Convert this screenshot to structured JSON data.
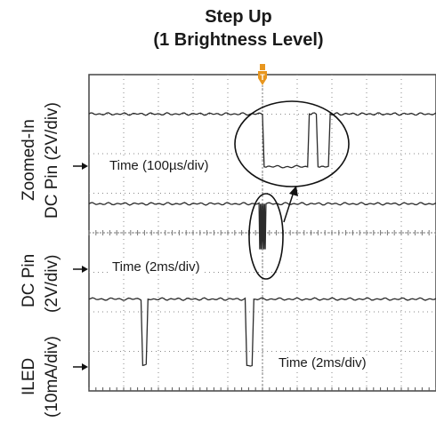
{
  "chart_data": {
    "type": "line",
    "title": "Step Up",
    "subtitle": "(1 Brightness Level)",
    "grid": true,
    "channels": [
      {
        "label_line1": "Zoomed-In",
        "label_line2": "DC Pin (2V/div)",
        "time_annotation": "Time (100µs/div)",
        "x": [
          0,
          5,
          5.05,
          6.3,
          6.35,
          6.55,
          6.6,
          6.9,
          6.95,
          7.15,
          7.2,
          10
        ],
        "y": [
          2.2,
          2.2,
          -2.2,
          -2.2,
          2.2,
          2.2,
          -2.2,
          -2.2,
          2.2,
          2.2,
          2.2,
          2.2
        ],
        "ylim": [
          -4,
          4
        ]
      },
      {
        "label_line1": "DC Pin",
        "label_line2": "(2V/div)",
        "time_annotation": "Time (2ms/div)",
        "x": [
          0,
          4.9,
          4.92,
          4.94,
          4.96,
          4.98,
          5.0,
          5.02,
          5.04,
          5.06,
          5.08,
          5.1,
          10
        ],
        "y": [
          2.5,
          2.5,
          -2.5,
          2.5,
          -2.5,
          2.5,
          -2.5,
          2.5,
          -2.5,
          2.5,
          -2.5,
          2.5,
          2.5
        ],
        "ylim": [
          -4,
          4
        ]
      },
      {
        "label_line1": "ILED",
        "label_line2": "(10mA/div)",
        "time_annotation": "Time (2ms/div)",
        "x": [
          0,
          1.5,
          1.55,
          1.65,
          1.7,
          4.5,
          4.55,
          4.7,
          4.75,
          10
        ],
        "y": [
          3,
          3,
          -1,
          -1,
          3,
          3,
          -1,
          -1,
          3,
          3
        ],
        "ylim": [
          -2,
          4
        ]
      }
    ],
    "trigger_marker": "T",
    "colors": {
      "trace": "#2b2b2b",
      "grid": "#8a8a8a",
      "trigger": "#e8961e"
    }
  }
}
